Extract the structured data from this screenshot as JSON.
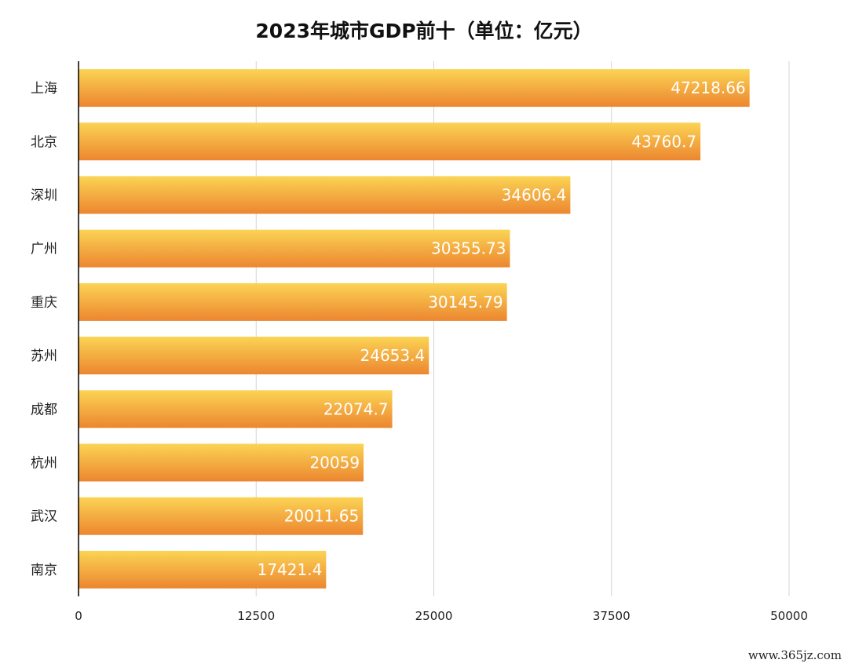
{
  "chart_data": {
    "type": "bar",
    "orientation": "horizontal",
    "title": "2023年城市GDP前十（单位：亿元）",
    "categories": [
      "上海",
      "北京",
      "深圳",
      "广州",
      "重庆",
      "苏州",
      "成都",
      "杭州",
      "武汉",
      "南京"
    ],
    "values": [
      47218.66,
      43760.7,
      34606.4,
      30355.73,
      30145.79,
      24653.4,
      22074.7,
      20059,
      20011.65,
      17421.4
    ],
    "value_labels": [
      "47218.66",
      "43760.7",
      "34606.4",
      "30355.73",
      "30145.79",
      "24653.4",
      "22074.7",
      "20059",
      "20011.65",
      "17421.4"
    ],
    "xlim": [
      0,
      50000
    ],
    "x_ticks": [
      0,
      12500,
      25000,
      37500,
      50000
    ],
    "grid": "vertical",
    "legend": "none",
    "colors": {
      "bar_top": "#fbd454",
      "bar_bottom": "#ec8630",
      "grid": "#d4d4d4",
      "axis": "#000000"
    }
  },
  "watermark": "www.365jz.com"
}
